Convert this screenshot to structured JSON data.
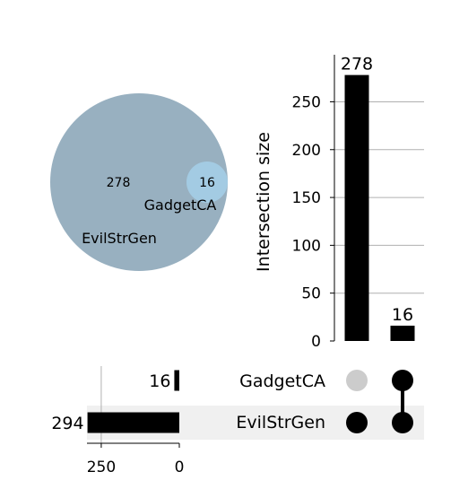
{
  "chart_data": [
    {
      "type": "venn",
      "sets": [
        {
          "name": "EvilStrGen",
          "only_count": 278,
          "color": "#98b0c0"
        },
        {
          "name": "GadgetCA",
          "only_count": 0,
          "color": "#a3cbe3"
        }
      ],
      "overlap_count": 16,
      "region_labels": [
        "278",
        "16"
      ],
      "set_labels": [
        "EvilStrGen",
        "GadgetCA"
      ]
    },
    {
      "type": "bar",
      "title": "",
      "ylabel": "Intersection size",
      "ylim": [
        0,
        290
      ],
      "yticks": [
        0,
        50,
        100,
        150,
        200,
        250
      ],
      "grid": true,
      "bars": [
        {
          "value": 278,
          "label": "278",
          "members": [
            "EvilStrGen"
          ]
        },
        {
          "value": 16,
          "label": "16",
          "members": [
            "EvilStrGen",
            "GadgetCA"
          ]
        }
      ]
    },
    {
      "type": "bar",
      "orientation": "horizontal",
      "xlim": [
        300,
        0
      ],
      "xticks": [
        250,
        0
      ],
      "grid": true,
      "sets": [
        {
          "name": "GadgetCA",
          "size": 16,
          "label": "16"
        },
        {
          "name": "EvilStrGen",
          "size": 294,
          "label": "294"
        }
      ]
    }
  ],
  "matrix": {
    "rows": [
      "GadgetCA",
      "EvilStrGen"
    ],
    "active_color": "#000000",
    "inactive_color": "#cccccc",
    "shade_color": "#f0f0f0"
  }
}
